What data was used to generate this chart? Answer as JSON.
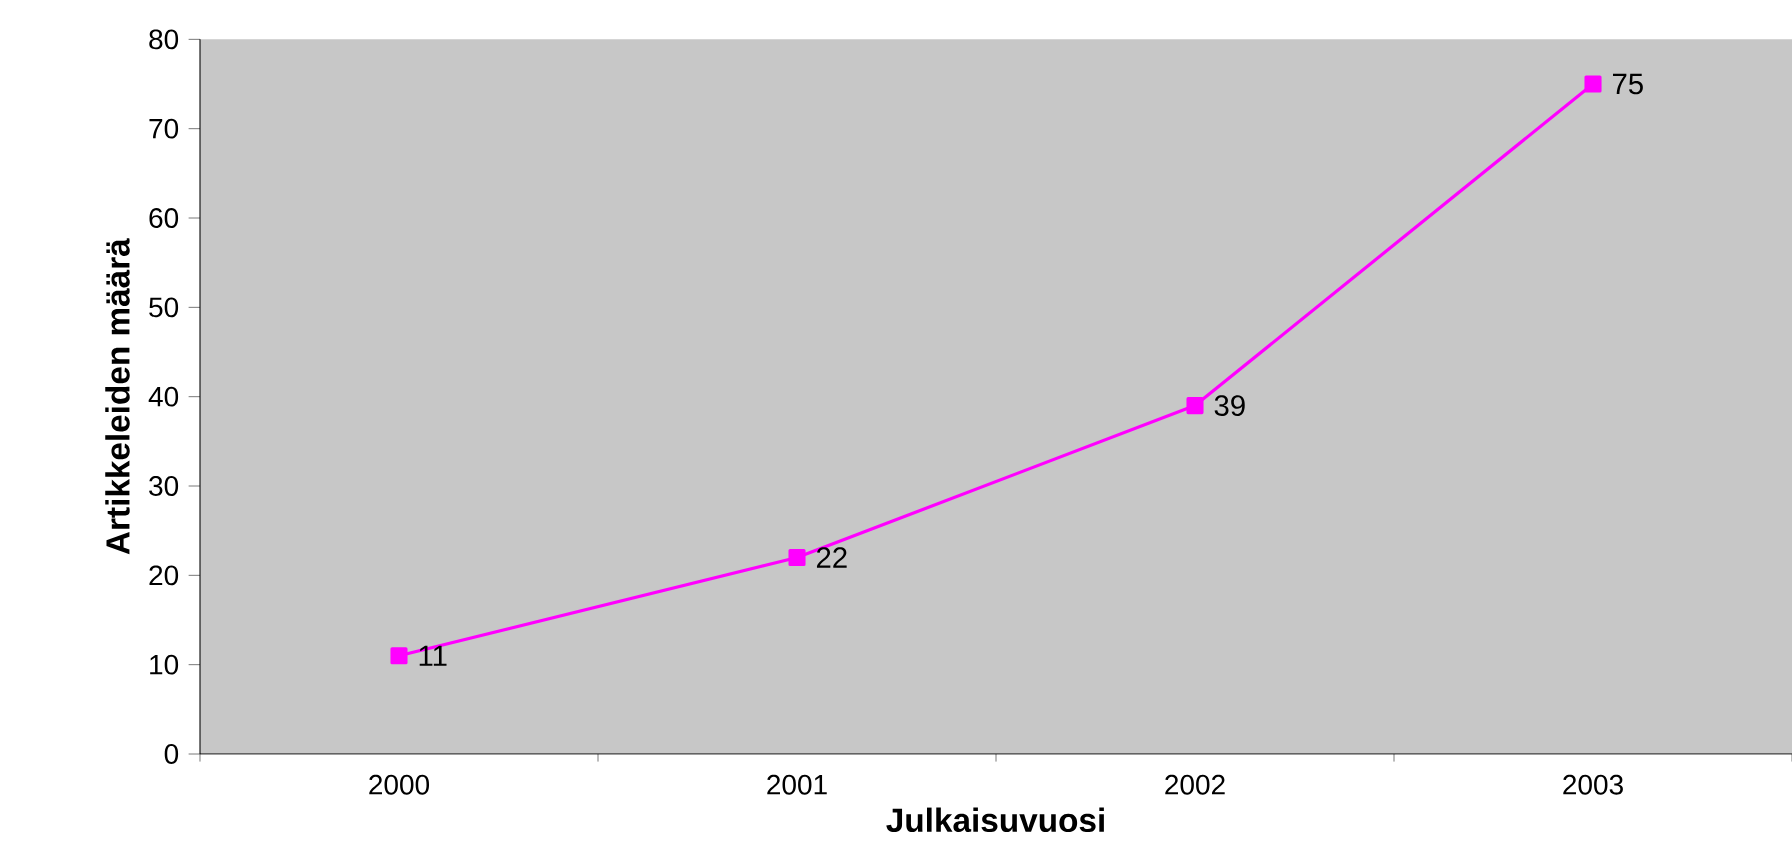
{
  "chart_data": {
    "type": "line",
    "xlabel": "Julkaisuvuosi",
    "ylabel": "Artikkeleiden määrä",
    "categories": [
      "2000",
      "2001",
      "2002",
      "2003"
    ],
    "series": [
      {
        "color": "#ff00ff",
        "values": [
          11,
          22,
          39,
          75
        ]
      }
    ],
    "ylim": [
      0,
      80
    ],
    "yticks": [
      0,
      10,
      20,
      30,
      40,
      50,
      60,
      70,
      80
    ],
    "data_labels": true,
    "marker": "square",
    "line_style": "solid",
    "grid": false
  }
}
